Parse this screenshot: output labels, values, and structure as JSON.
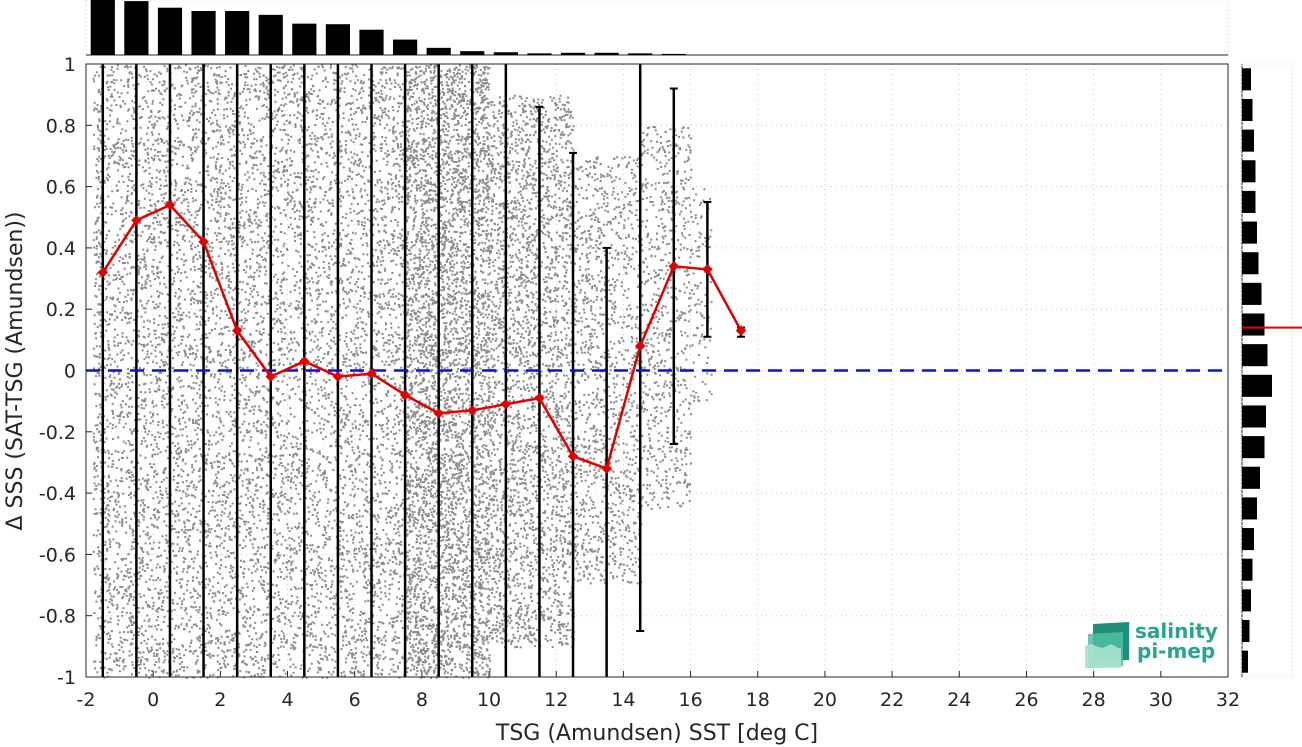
{
  "chart_data": {
    "type": "scatter",
    "xlabel": "TSG (Amundsen) SST [deg C]",
    "ylabel": "Δ SSS (SAT-TSG (Amundsen))",
    "xlim": [
      -2,
      32
    ],
    "ylim": [
      -1,
      1
    ],
    "x_ticks": [
      "-2",
      "0",
      "2",
      "4",
      "6",
      "8",
      "10",
      "12",
      "14",
      "16",
      "18",
      "20",
      "22",
      "24",
      "26",
      "28",
      "30",
      "32"
    ],
    "y_ticks": [
      "-1",
      "-0.8",
      "-0.6",
      "-0.4",
      "-0.2",
      "0",
      "0.2",
      "0.4",
      "0.6",
      "0.8",
      "1"
    ],
    "grid": true,
    "reference_line": {
      "y": 0,
      "style": "dashed",
      "color": "#1010d0"
    },
    "scatter_color": "#8a8a8a",
    "scatter_extent": [
      {
        "x0": -1.8,
        "x1": 7.5,
        "y0": -1.0,
        "y1": 1.0,
        "density": 1.0
      },
      {
        "x0": 7.5,
        "x1": 10.0,
        "y0": -1.0,
        "y1": 1.0,
        "density": 0.75
      },
      {
        "x0": 10.0,
        "x1": 12.5,
        "y0": -0.9,
        "y1": 0.9,
        "density": 0.5
      },
      {
        "x0": 12.5,
        "x1": 14.5,
        "y0": -0.7,
        "y1": 0.7,
        "density": 0.35
      },
      {
        "x0": 14.5,
        "x1": 16.0,
        "y0": -0.45,
        "y1": 0.8,
        "density": 0.3
      },
      {
        "x0": 16.0,
        "x1": 16.6,
        "y0": -0.1,
        "y1": 0.6,
        "density": 0.2
      }
    ],
    "series": [
      {
        "name": "",
        "color": "#e00000",
        "x": [
          -1.5,
          -0.5,
          0.5,
          1.5,
          2.5,
          3.5,
          4.5,
          5.5,
          6.5,
          7.5,
          8.5,
          9.5,
          10.5,
          11.5,
          12.5,
          13.5,
          14.5,
          15.5,
          16.5,
          17.5
        ],
        "y": [
          0.32,
          0.49,
          0.54,
          0.42,
          0.13,
          -0.02,
          0.03,
          -0.02,
          -0.01,
          -0.08,
          -0.14,
          -0.13,
          -0.11,
          -0.09,
          -0.28,
          -0.32,
          0.08,
          0.34,
          0.33,
          0.13
        ],
        "err_low": [
          -1.0,
          -1.0,
          -1.0,
          -1.0,
          -1.0,
          -1.0,
          -1.0,
          -1.0,
          -1.0,
          -1.0,
          -1.0,
          -1.0,
          -1.0,
          -1.0,
          -1.0,
          -1.0,
          -0.85,
          -0.24,
          0.11,
          0.11
        ],
        "err_high": [
          1.0,
          1.0,
          1.0,
          1.0,
          1.0,
          1.0,
          1.0,
          1.0,
          1.0,
          1.0,
          1.0,
          1.0,
          1.0,
          0.86,
          0.71,
          0.4,
          1.0,
          0.92,
          0.55,
          0.14
        ]
      }
    ],
    "top_histogram": {
      "bins": [
        -1.5,
        -0.5,
        0.5,
        1.5,
        2.5,
        3.5,
        4.5,
        5.5,
        6.5,
        7.5,
        8.5,
        9.5,
        10.5,
        11.5,
        12.5,
        13.5,
        14.5,
        15.5
      ],
      "values": [
        1.0,
        0.98,
        0.86,
        0.8,
        0.8,
        0.73,
        0.57,
        0.56,
        0.46,
        0.28,
        0.13,
        0.07,
        0.05,
        0.03,
        0.04,
        0.04,
        0.03,
        0.02
      ]
    },
    "right_histogram": {
      "bins": [
        0.95,
        0.85,
        0.75,
        0.65,
        0.55,
        0.45,
        0.35,
        0.25,
        0.15,
        0.05,
        -0.05,
        -0.15,
        -0.25,
        -0.35,
        -0.45,
        -0.55,
        -0.65,
        -0.75,
        -0.85,
        -0.95
      ],
      "values": [
        0.3,
        0.35,
        0.4,
        0.45,
        0.45,
        0.5,
        0.55,
        0.65,
        0.75,
        0.85,
        1.0,
        0.8,
        0.75,
        0.6,
        0.5,
        0.4,
        0.35,
        0.3,
        0.25,
        0.2
      ],
      "median_marker_y": 0.14,
      "median_marker_color": "#e00000"
    }
  },
  "logo": {
    "line1": "salinity",
    "line2": "pi-mep"
  }
}
